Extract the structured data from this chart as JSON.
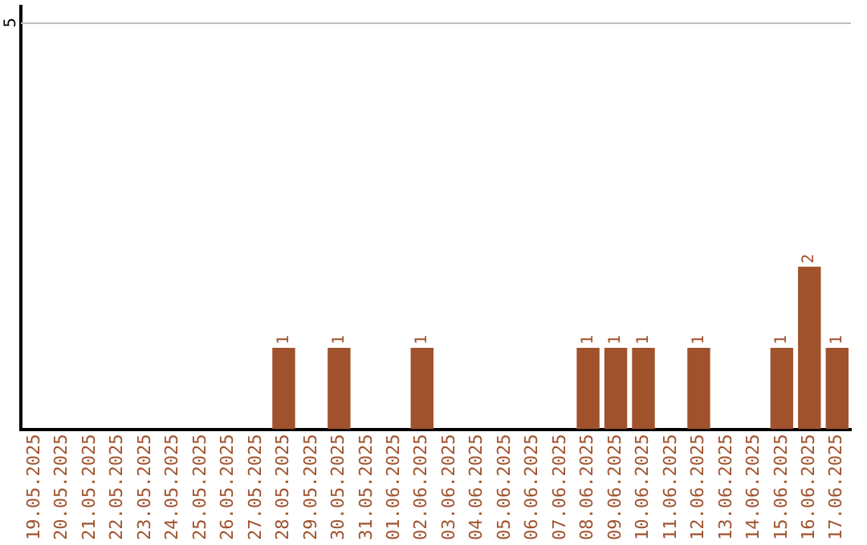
{
  "chart_data": {
    "type": "bar",
    "categories": [
      "19.05.2025",
      "20.05.2025",
      "21.05.2025",
      "22.05.2025",
      "23.05.2025",
      "24.05.2025",
      "25.05.2025",
      "26.05.2025",
      "27.05.2025",
      "28.05.2025",
      "29.05.2025",
      "30.05.2025",
      "31.05.2025",
      "01.06.2025",
      "02.06.2025",
      "03.06.2025",
      "04.06.2025",
      "05.06.2025",
      "06.06.2025",
      "07.06.2025",
      "08.06.2025",
      "09.06.2025",
      "10.06.2025",
      "11.06.2025",
      "12.06.2025",
      "13.06.2025",
      "14.06.2025",
      "15.06.2025",
      "16.06.2025",
      "17.06.2025"
    ],
    "values": [
      0,
      0,
      0,
      0,
      0,
      0,
      0,
      0,
      0,
      1,
      0,
      1,
      0,
      0,
      1,
      0,
      0,
      0,
      0,
      0,
      1,
      1,
      1,
      0,
      1,
      0,
      0,
      1,
      2,
      1
    ],
    "value_labels": [
      null,
      null,
      null,
      null,
      null,
      null,
      null,
      null,
      null,
      "1",
      null,
      "1",
      null,
      null,
      "1",
      null,
      null,
      null,
      null,
      null,
      "1",
      "1",
      "1",
      null,
      "1",
      null,
      null,
      "1",
      "2",
      "1"
    ],
    "color": "#a0522d",
    "ylim": [
      0,
      5.2
    ],
    "yticks": [
      5
    ],
    "grid": "y",
    "legend": false
  }
}
